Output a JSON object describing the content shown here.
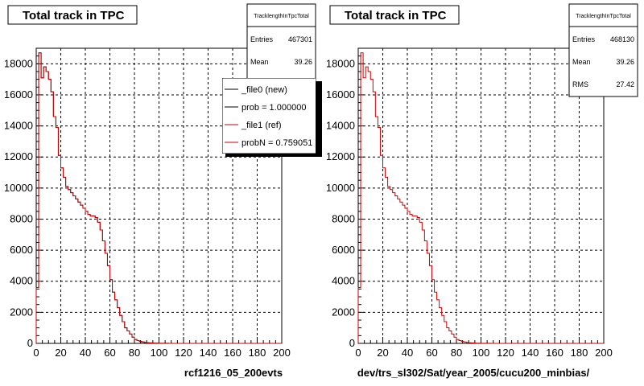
{
  "colors": {
    "new": "#000000",
    "ref": "#cc0000",
    "grid": "#000000",
    "background": "#ffffff"
  },
  "chart_data": [
    {
      "type": "histogram",
      "title": "Total track in TPC",
      "xlabel": "rcf1216_05_200evts",
      "xlim": [
        0,
        200
      ],
      "ylim": [
        0,
        19000
      ],
      "xticks": [
        "0",
        "20",
        "40",
        "60",
        "80",
        "100",
        "120",
        "140",
        "160",
        "180",
        "200"
      ],
      "yticks": [
        "0",
        "2000",
        "4000",
        "6000",
        "8000",
        "10000",
        "12000",
        "14000",
        "16000",
        "18000"
      ],
      "grid": true,
      "stats": {
        "name": "TracklengthInTpcTotal",
        "rows": [
          {
            "label": "Entries",
            "value": "467301"
          },
          {
            "label": "Mean",
            "value": "39.26"
          }
        ]
      },
      "legend": {
        "placement": "top-right",
        "entries": [
          {
            "text": "_file0 (new)",
            "color": "#000000"
          },
          {
            "text": "prob = 1.000000",
            "color": "#000000"
          },
          {
            "text": "_file1 (ref)",
            "color": "#cc0000"
          },
          {
            "text": "probN = 0.759051",
            "color": "#cc0000"
          }
        ]
      },
      "series": [
        {
          "name": "_file0 (new)",
          "color": "#000000"
        },
        {
          "name": "_file1 (ref)",
          "color": "#cc0000"
        }
      ],
      "bin_width": 2,
      "values": [
        3600,
        18700,
        17100,
        17800,
        17500,
        17000,
        16200,
        14600,
        13900,
        12100,
        11300,
        10700,
        10100,
        9900,
        9700,
        9500,
        9300,
        9100,
        8900,
        8700,
        8500,
        8300,
        8200,
        8200,
        8100,
        7800,
        7300,
        6600,
        5800,
        5000,
        4100,
        3300,
        2800,
        2300,
        1800,
        1400,
        1000,
        800,
        600,
        400,
        250,
        180,
        120,
        90,
        60,
        40,
        30,
        20,
        15,
        10,
        8,
        6,
        5,
        4,
        3,
        2,
        2,
        1,
        1,
        1,
        0,
        0,
        0,
        0,
        0,
        0,
        0,
        0,
        0,
        0,
        0,
        0,
        0,
        0,
        0,
        0,
        0,
        0,
        0,
        0,
        0,
        0,
        0,
        0,
        0,
        0,
        0,
        0,
        0,
        0,
        0,
        0,
        0,
        0,
        0,
        0,
        0,
        0,
        0,
        0
      ]
    },
    {
      "type": "histogram",
      "title": "Total track in TPC",
      "xlabel": "dev/trs_sl302/Sat/year_2005/cucu200_minbias/",
      "xlim": [
        0,
        200
      ],
      "ylim": [
        0,
        19000
      ],
      "xticks": [
        "0",
        "20",
        "40",
        "60",
        "80",
        "100",
        "120",
        "140",
        "160",
        "180",
        "200"
      ],
      "yticks": [
        "0",
        "2000",
        "4000",
        "6000",
        "8000",
        "10000",
        "12000",
        "14000",
        "16000",
        "18000"
      ],
      "grid": true,
      "stats": {
        "name": "TracklengthInTpcTotal",
        "rows": [
          {
            "label": "Entries",
            "value": "468130"
          },
          {
            "label": "Mean",
            "value": "39.26"
          },
          {
            "label": "RMS",
            "value": "27.42"
          }
        ]
      },
      "series": [
        {
          "name": "",
          "color": "#cc0000"
        }
      ],
      "bin_width": 2,
      "values": [
        3600,
        18700,
        17100,
        17800,
        17500,
        17000,
        16200,
        14600,
        13900,
        12100,
        11300,
        10700,
        10100,
        9900,
        9700,
        9500,
        9300,
        9100,
        8900,
        8700,
        8500,
        8300,
        8200,
        8200,
        8100,
        7800,
        7300,
        6600,
        5800,
        5000,
        4100,
        3300,
        2800,
        2300,
        1800,
        1400,
        1000,
        800,
        600,
        400,
        250,
        180,
        120,
        90,
        60,
        40,
        30,
        20,
        15,
        10,
        8,
        6,
        5,
        4,
        3,
        2,
        2,
        1,
        1,
        1,
        0,
        0,
        0,
        0,
        0,
        0,
        0,
        0,
        0,
        0,
        0,
        0,
        0,
        0,
        0,
        0,
        0,
        0,
        0,
        0,
        0,
        0,
        0,
        0,
        0,
        0,
        0,
        0,
        0,
        0,
        0,
        0,
        0,
        0,
        0,
        0,
        0,
        0,
        0,
        0
      ]
    }
  ]
}
